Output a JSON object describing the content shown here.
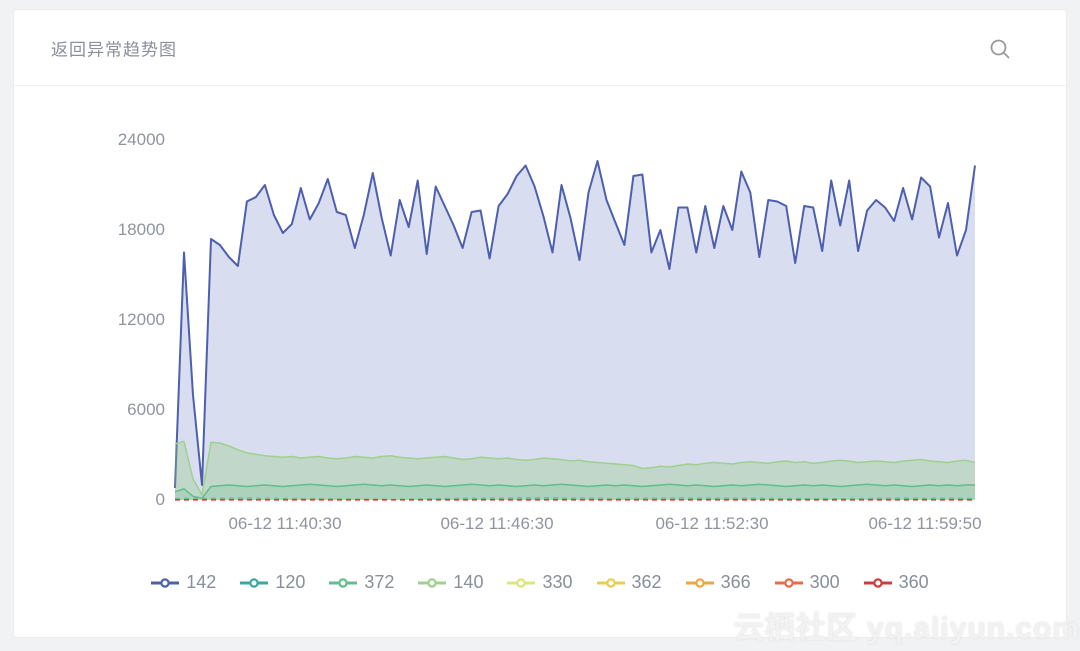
{
  "header": {
    "title": "返回异常趋势图",
    "search_icon": "magnifier"
  },
  "watermark": "云栖社区 yq.aliyun.com",
  "colors": {
    "card_bg": "#ffffff",
    "page_bg": "#f1f2f3",
    "axis_text": "#8f959e",
    "title_text": "#8a8f99"
  },
  "chart_data": {
    "type": "area",
    "title": "返回异常趋势图",
    "xlabel": "",
    "ylabel": "",
    "ylim": [
      0,
      24000
    ],
    "grid": false,
    "legend_position": "bottom",
    "y_ticks": [
      "24000",
      "18000",
      "12000",
      "6000",
      "0"
    ],
    "x_ticks": [
      {
        "label": "06-12 11:40:30",
        "pos": 0.1375
      },
      {
        "label": "06-12 11:46:30",
        "pos": 0.4025
      },
      {
        "label": "06-12 11:52:30",
        "pos": 0.6713
      },
      {
        "label": "06-12 11:59:50",
        "pos": 0.9375
      }
    ],
    "series": [
      {
        "name": "142",
        "color": "#4d5fae",
        "fill": "rgba(92,113,192,0.24)",
        "width": 2,
        "dash": false,
        "values": [
          800,
          16500,
          7000,
          1000,
          17400,
          17000,
          16200,
          15600,
          19900,
          20200,
          21000,
          19000,
          17800,
          18400,
          20800,
          18700,
          19800,
          21400,
          19200,
          19000,
          16800,
          19000,
          21800,
          18800,
          16300,
          20000,
          18200,
          21300,
          16400,
          20900,
          19600,
          18300,
          16800,
          19200,
          19300,
          16100,
          19600,
          20400,
          21600,
          22300,
          20900,
          18900,
          16500,
          21000,
          18800,
          16000,
          20500,
          22600,
          20000,
          18500,
          17000,
          21600,
          21700,
          16500,
          18000,
          15400,
          19500,
          19500,
          16500,
          19600,
          16800,
          19600,
          18000,
          21900,
          20500,
          16200,
          20000,
          19900,
          19600,
          15800,
          19600,
          19500,
          16600,
          21300,
          18300,
          21300,
          16600,
          19300,
          20000,
          19500,
          18600,
          20800,
          18700,
          21500,
          20900,
          17500,
          19800,
          16300,
          18000,
          22300
        ]
      },
      {
        "name": "120",
        "color": "#3aa7a3",
        "fill": null,
        "width": 1.5,
        "dash": true,
        "values": [
          90,
          110,
          80,
          60,
          100,
          120,
          90,
          110,
          100,
          80,
          110,
          90
        ]
      },
      {
        "name": "372",
        "color": "#5fbe89",
        "fill": "rgba(95,190,137,0.20)",
        "width": 1.5,
        "dash": false,
        "values": [
          550,
          750,
          250,
          120,
          900,
          950,
          1000,
          950,
          900,
          950,
          1000,
          950,
          900,
          950,
          1000,
          1050,
          1000,
          950,
          900,
          950,
          1000,
          1050,
          1000,
          950,
          1000,
          950,
          900,
          950,
          1000,
          950,
          900,
          950,
          1000,
          1050,
          1000,
          950,
          1000,
          950,
          900,
          950,
          1000,
          950,
          1000,
          1050,
          1000,
          950,
          900,
          950,
          1000,
          950,
          1000,
          950,
          900,
          950,
          1000,
          1050,
          1000,
          950,
          1000,
          950,
          900,
          950,
          1000,
          950,
          1000,
          1050,
          1000,
          950,
          900,
          950,
          1000,
          950,
          1000,
          950,
          900,
          950,
          1000,
          1050,
          1000,
          950,
          1000,
          950,
          900,
          950,
          1000,
          950,
          1000,
          950,
          1000,
          1000
        ]
      },
      {
        "name": "140",
        "color": "#9fd08e",
        "fill": "rgba(142,201,120,0.32)",
        "width": 1.5,
        "dash": false,
        "values": [
          3750,
          3900,
          1400,
          350,
          3850,
          3800,
          3600,
          3350,
          3150,
          3050,
          2950,
          2900,
          2850,
          2900,
          2800,
          2850,
          2900,
          2800,
          2750,
          2800,
          2900,
          2850,
          2800,
          2900,
          2950,
          2850,
          2800,
          2750,
          2800,
          2850,
          2900,
          2800,
          2700,
          2750,
          2850,
          2800,
          2750,
          2800,
          2700,
          2650,
          2700,
          2800,
          2750,
          2700,
          2600,
          2650,
          2550,
          2500,
          2450,
          2400,
          2350,
          2300,
          2100,
          2150,
          2250,
          2200,
          2300,
          2400,
          2350,
          2450,
          2500,
          2450,
          2400,
          2500,
          2550,
          2500,
          2450,
          2550,
          2600,
          2500,
          2550,
          2450,
          2500,
          2600,
          2650,
          2600,
          2500,
          2550,
          2600,
          2550,
          2500,
          2600,
          2650,
          2700,
          2600,
          2550,
          2500,
          2600,
          2650,
          2500
        ]
      },
      {
        "name": "330",
        "color": "#d9e877",
        "fill": null,
        "width": 1.5,
        "dash": true,
        "values": [
          40,
          45,
          38,
          42,
          40,
          44,
          39,
          41,
          40,
          42
        ]
      },
      {
        "name": "362",
        "color": "#e6cf4e",
        "fill": null,
        "width": 1.5,
        "dash": true,
        "values": [
          28,
          32,
          30,
          27,
          31,
          29,
          30,
          28
        ]
      },
      {
        "name": "366",
        "color": "#eda742",
        "fill": null,
        "width": 1.5,
        "dash": true,
        "values": [
          20,
          24,
          22,
          21,
          23,
          20,
          22,
          21
        ]
      },
      {
        "name": "300",
        "color": "#e96c47",
        "fill": null,
        "width": 1.5,
        "dash": true,
        "values": [
          14,
          16,
          15,
          13,
          15,
          14,
          16,
          15
        ]
      },
      {
        "name": "360",
        "color": "#cf3d3d",
        "fill": null,
        "width": 1.5,
        "dash": true,
        "values": [
          8,
          10,
          9,
          8,
          10,
          9,
          8,
          9
        ]
      }
    ]
  }
}
